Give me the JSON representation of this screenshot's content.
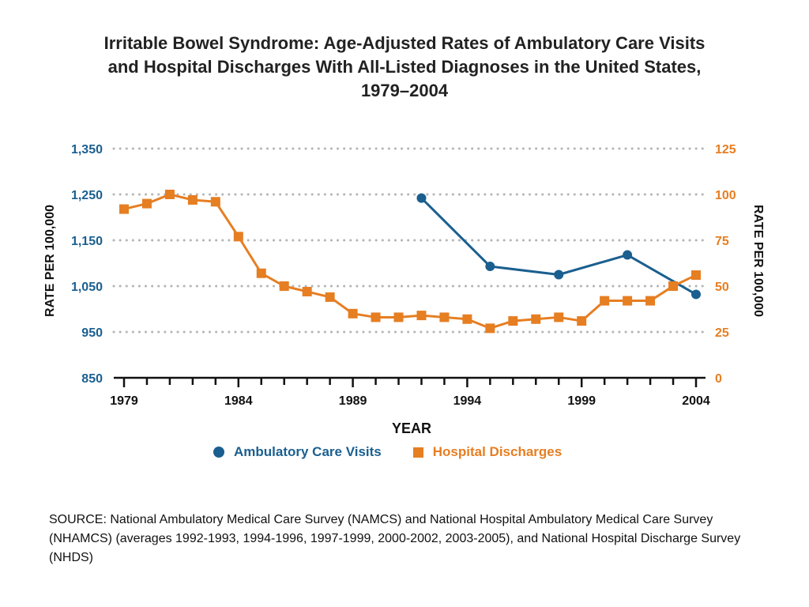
{
  "title_lines": [
    "Irritable Bowel Syndrome:  Age-Adjusted Rates of Ambulatory Care Visits",
    "and Hospital Discharges With All-Listed Diagnoses in the United States,",
    "1979–2004"
  ],
  "chart_data": {
    "type": "line",
    "xlabel": "YEAR",
    "ylabel_left": "RATE PER 100,000",
    "ylabel_right": "RATE PER 100,000",
    "xlim": [
      1979,
      2004
    ],
    "x_tick_labels": [
      "1979",
      "1984",
      "1989",
      "1994",
      "1999",
      "2004"
    ],
    "y_left": {
      "lim": [
        850,
        1350
      ],
      "tick_labels": [
        "1,350",
        "1,250",
        "1,150",
        "1,050",
        "950",
        "850"
      ]
    },
    "y_right": {
      "lim": [
        0,
        125
      ],
      "tick_labels": [
        "125",
        "100",
        "75",
        "50",
        "25",
        "0"
      ]
    },
    "grid": "dotted horizontal",
    "legend_position": "bottom",
    "series": [
      {
        "name": "Ambulatory Care Visits",
        "axis": "left",
        "marker": "circle",
        "color": "#1a5f8f",
        "x": [
          1992,
          1995,
          1998,
          2001,
          2004
        ],
        "y": [
          1242,
          1093,
          1075,
          1118,
          1032
        ]
      },
      {
        "name": "Hospital Discharges",
        "axis": "right",
        "marker": "square",
        "color": "#e67e22",
        "x": [
          1979,
          1980,
          1981,
          1982,
          1983,
          1984,
          1985,
          1986,
          1987,
          1988,
          1989,
          1990,
          1991,
          1992,
          1993,
          1994,
          1995,
          1996,
          1997,
          1998,
          1999,
          2000,
          2001,
          2002,
          2003,
          2004
        ],
        "y": [
          92,
          95,
          100,
          97,
          96,
          77,
          57,
          50,
          47,
          44,
          35,
          33,
          33,
          34,
          33,
          32,
          27,
          31,
          32,
          33,
          31,
          42,
          42,
          42,
          50,
          56
        ]
      }
    ]
  },
  "source_text": "SOURCE: National Ambulatory Medical Care Survey (NAMCS) and National Hospital Ambulatory Medical Care Survey (NHAMCS) (averages 1992-1993, 1994-1996, 1997-1999, 2000-2002, 2003-2005), and National Hospital Discharge Survey (NHDS)"
}
